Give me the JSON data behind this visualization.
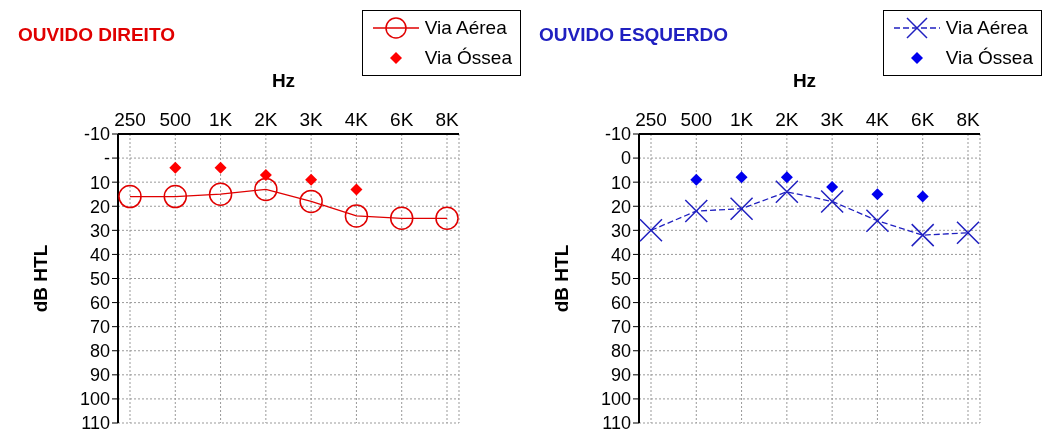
{
  "chart_data": [
    {
      "type": "line",
      "title": "OUVIDO DIREITO",
      "xlabel": "Hz",
      "ylabel": "dB HTL",
      "categories": [
        "250",
        "500",
        "1K",
        "2K",
        "3K",
        "4K",
        "6K",
        "8K"
      ],
      "ylim": [
        110,
        -10
      ],
      "yticks": [
        -10,
        {
          "value": 0,
          "label": "-"
        },
        10,
        20,
        30,
        40,
        50,
        60,
        70,
        80,
        90,
        100,
        110
      ],
      "grid": true,
      "legend": "top right",
      "series": [
        {
          "name": "Via Aérea",
          "color": "#e00000",
          "marker": "circle",
          "line_style": "solid",
          "values": [
            16,
            16,
            15,
            13,
            18,
            24,
            25,
            25
          ]
        },
        {
          "name": "Via Óssea",
          "type": "scatter",
          "color": "#ff0000",
          "marker": "diamond",
          "values": [
            null,
            4,
            4,
            7,
            9,
            13,
            null,
            null
          ]
        }
      ]
    },
    {
      "type": "line",
      "title": "OUVIDO ESQUERDO",
      "xlabel": "Hz",
      "ylabel": "dB HTL",
      "categories": [
        "250",
        "500",
        "1K",
        "2K",
        "3K",
        "4K",
        "6K",
        "8K"
      ],
      "ylim": [
        110,
        -10
      ],
      "yticks": [
        -10,
        0,
        10,
        20,
        30,
        40,
        50,
        60,
        70,
        80,
        90,
        100,
        110
      ],
      "grid": true,
      "legend": "top right",
      "series": [
        {
          "name": "Via Aérea",
          "color": "#2020c0",
          "marker": "cross",
          "line_style": "dashed",
          "values": [
            30,
            22,
            21,
            14,
            18,
            26,
            32,
            31
          ]
        },
        {
          "name": "Via Óssea",
          "type": "scatter",
          "color": "#0000ee",
          "marker": "diamond",
          "values": [
            null,
            9,
            8,
            8,
            12,
            15,
            16,
            null
          ]
        }
      ]
    }
  ]
}
